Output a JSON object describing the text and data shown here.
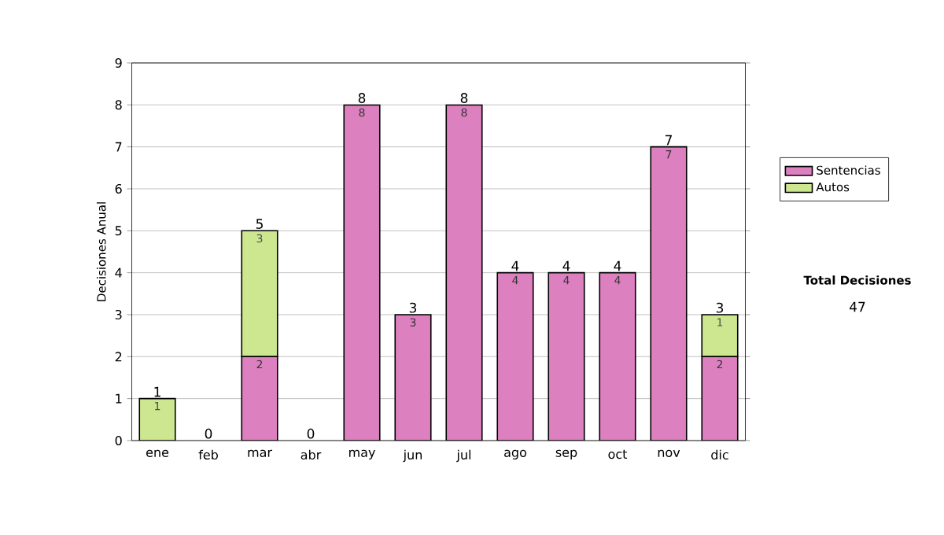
{
  "chart_data": {
    "type": "bar",
    "stacked": true,
    "ylabel": "Decisiones Anual",
    "categories": [
      "ene",
      "feb",
      "mar",
      "abr",
      "may",
      "jun",
      "jul",
      "ago",
      "sep",
      "oct",
      "nov",
      "dic"
    ],
    "series": [
      {
        "name": "Sentencias",
        "color": "#dd80c0",
        "values": [
          0,
          0,
          2,
          0,
          8,
          3,
          8,
          4,
          4,
          4,
          7,
          2
        ],
        "value_labels": [
          null,
          null,
          "2",
          null,
          "8",
          "3",
          "8",
          "4",
          "4",
          "4",
          "7",
          "2"
        ]
      },
      {
        "name": "Autos",
        "color": "#cde690",
        "values": [
          1,
          0,
          3,
          0,
          0,
          0,
          0,
          0,
          0,
          0,
          0,
          1
        ],
        "value_labels": [
          "1",
          null,
          "3",
          null,
          null,
          null,
          null,
          null,
          null,
          null,
          null,
          "1"
        ]
      }
    ],
    "totals": [
      "1",
      "0",
      "5",
      "0",
      "8",
      "3",
      "8",
      "4",
      "4",
      "4",
      "7",
      "3"
    ],
    "ylim": [
      0,
      9
    ],
    "yticks": [
      0,
      1,
      2,
      3,
      4,
      5,
      6,
      7,
      8,
      9
    ],
    "grid": "y",
    "legend": "right",
    "annotations": [
      "**Total Decisiones**",
      "47"
    ]
  }
}
